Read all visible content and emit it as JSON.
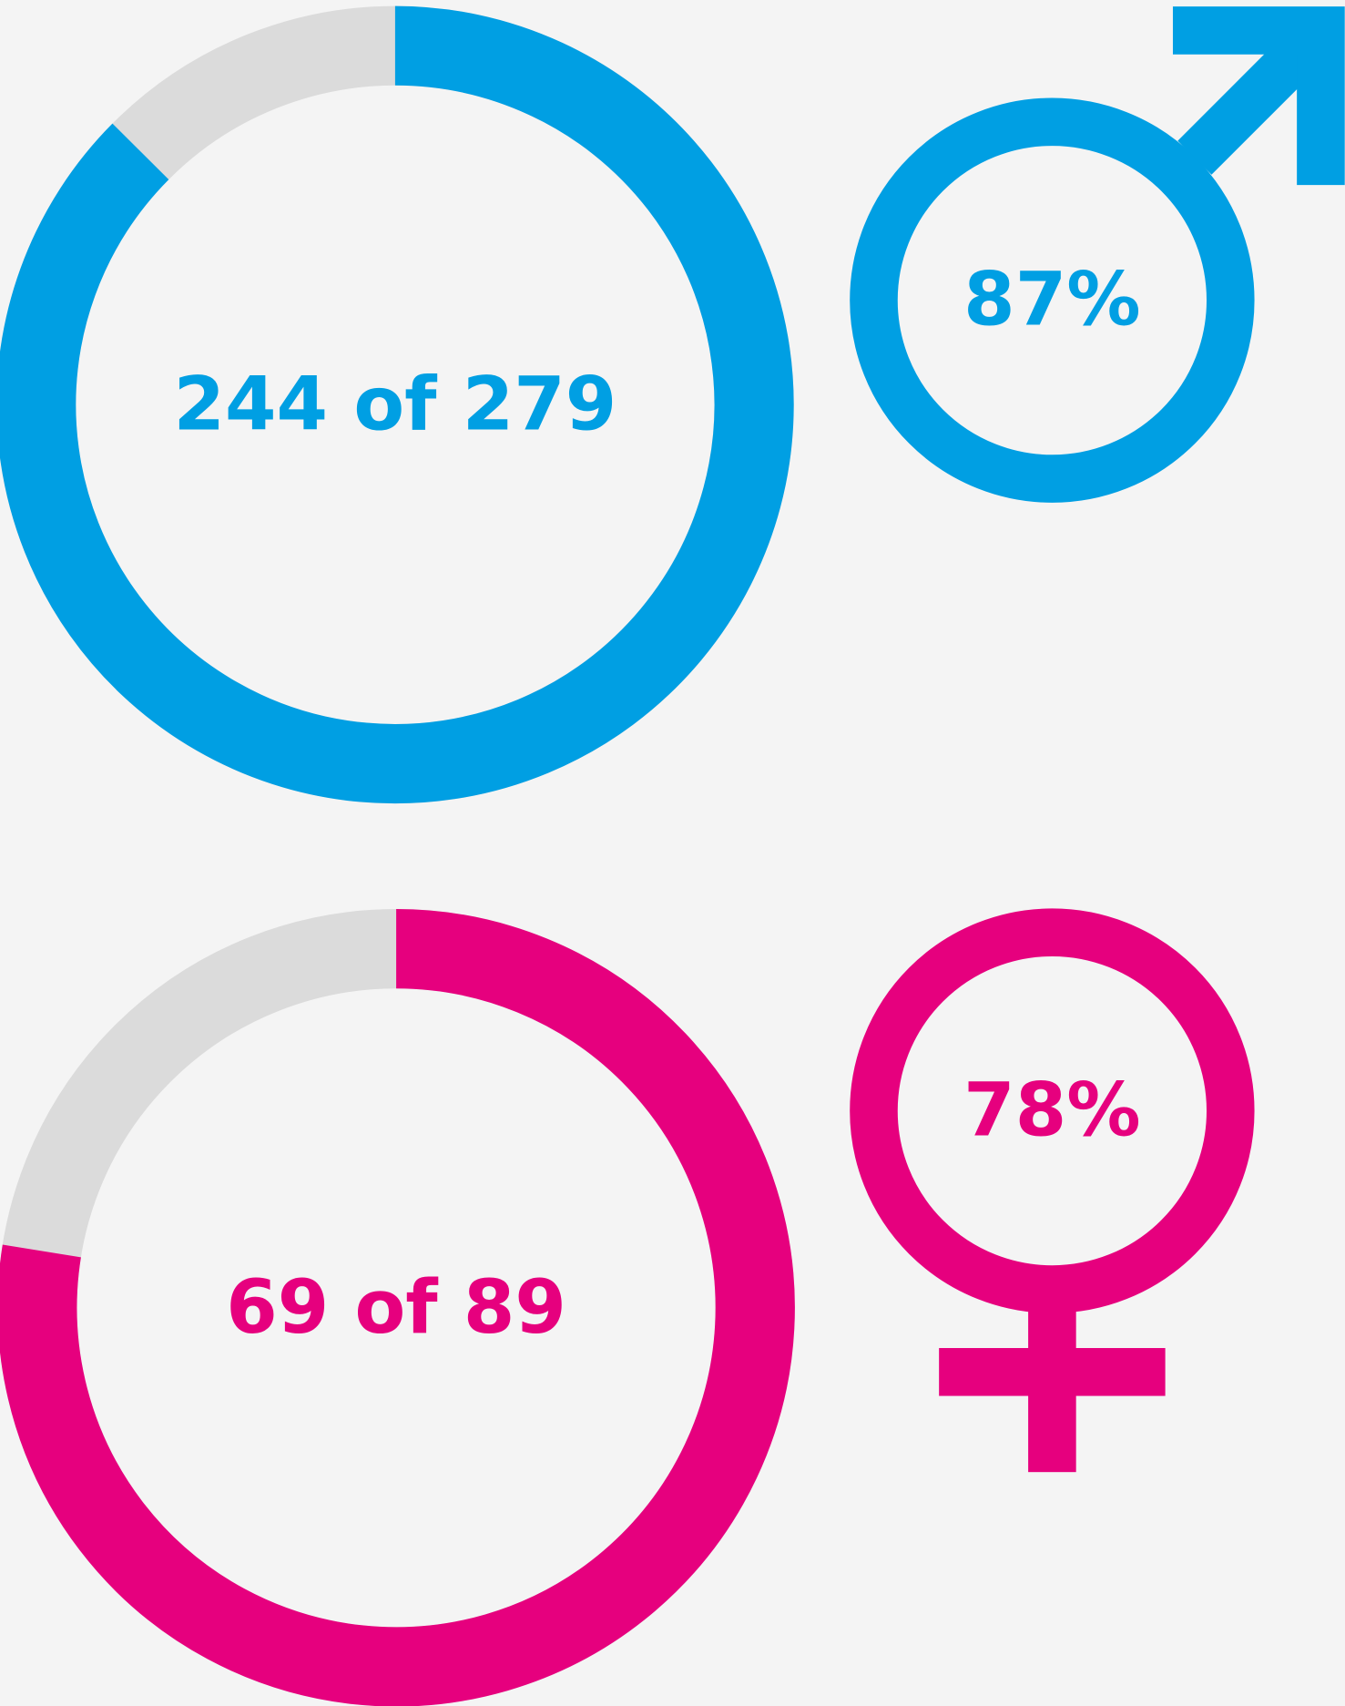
{
  "chart_data": [
    {
      "type": "donut",
      "value": 244,
      "total": 279,
      "value_label": "244 of 279",
      "percent": 87,
      "percent_label": "87%",
      "color": "#009fe3",
      "track_color": "#dbdbdb",
      "symbol": "male"
    },
    {
      "type": "donut",
      "value": 69,
      "total": 89,
      "value_label": "69 of 89",
      "percent": 78,
      "percent_label": "78%",
      "color": "#e6007e",
      "track_color": "#dbdbdb",
      "symbol": "female"
    }
  ]
}
